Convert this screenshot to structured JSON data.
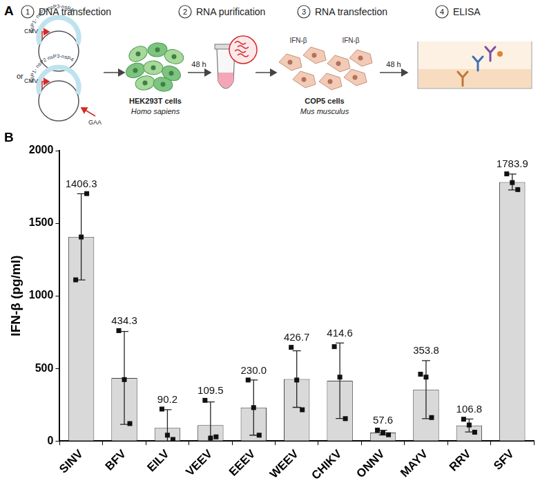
{
  "diagram": {
    "panel_label": "A",
    "steps": [
      {
        "number": "1",
        "label": "DNA transfection"
      },
      {
        "number": "2",
        "label": "RNA purification"
      },
      {
        "number": "3",
        "label": "RNA transfection"
      },
      {
        "number": "4",
        "label": "ELISA"
      }
    ],
    "plasmid": {
      "promoter": "CMV",
      "genes": [
        "nsP1-",
        "nsP2",
        "nsP3-nsP4"
      ],
      "separator": "or",
      "mutation": "GAA"
    },
    "cells": [
      {
        "name": "HEK293T cells",
        "species": "Homo sapiens"
      },
      {
        "name": "COP5 cells",
        "species": "Mus musculus"
      }
    ],
    "time": "48 h",
    "secreted": "IFN-β"
  },
  "chart_data": {
    "type": "bar",
    "panel_label": "B",
    "y_label": "IFN-β (pg/ml)",
    "categories": [
      "SINV",
      "BFV",
      "EILV",
      "VEEV",
      "EEEV",
      "WEEV",
      "CHIKV",
      "ONNV",
      "MAYV",
      "RRV",
      "SFV"
    ],
    "values": [
      1406.3,
      434.3,
      90.2,
      109.5,
      230.0,
      426.7,
      414.6,
      57.6,
      353.8,
      106.8,
      1783.9
    ],
    "value_labels": [
      "1406.3",
      "434.3",
      "90.2",
      "109.5",
      "230.0",
      "426.7",
      "414.6",
      "57.6",
      "353.8",
      "106.8",
      "1783.9"
    ],
    "error_bars": [
      297,
      320,
      125,
      160,
      190,
      195,
      260,
      16,
      200,
      45,
      55
    ],
    "replicates": [
      [
        1110,
        1405,
        1703.9
      ],
      [
        760,
        423,
        120
      ],
      [
        220,
        40,
        10.6
      ],
      [
        280,
        20,
        28.5
      ],
      [
        420,
        230,
        40
      ],
      [
        645,
        420,
        215
      ],
      [
        650,
        440,
        154
      ],
      [
        75,
        54.8,
        43
      ],
      [
        460,
        440,
        161.4
      ],
      [
        150,
        110,
        60.4
      ],
      [
        1840,
        1780,
        1731.7
      ]
    ],
    "color": "#d9d9d9",
    "ylim": [
      0,
      2000
    ],
    "yticks": [
      0,
      500,
      1000,
      1500,
      2000
    ],
    "grid": false,
    "data_labels": true
  }
}
